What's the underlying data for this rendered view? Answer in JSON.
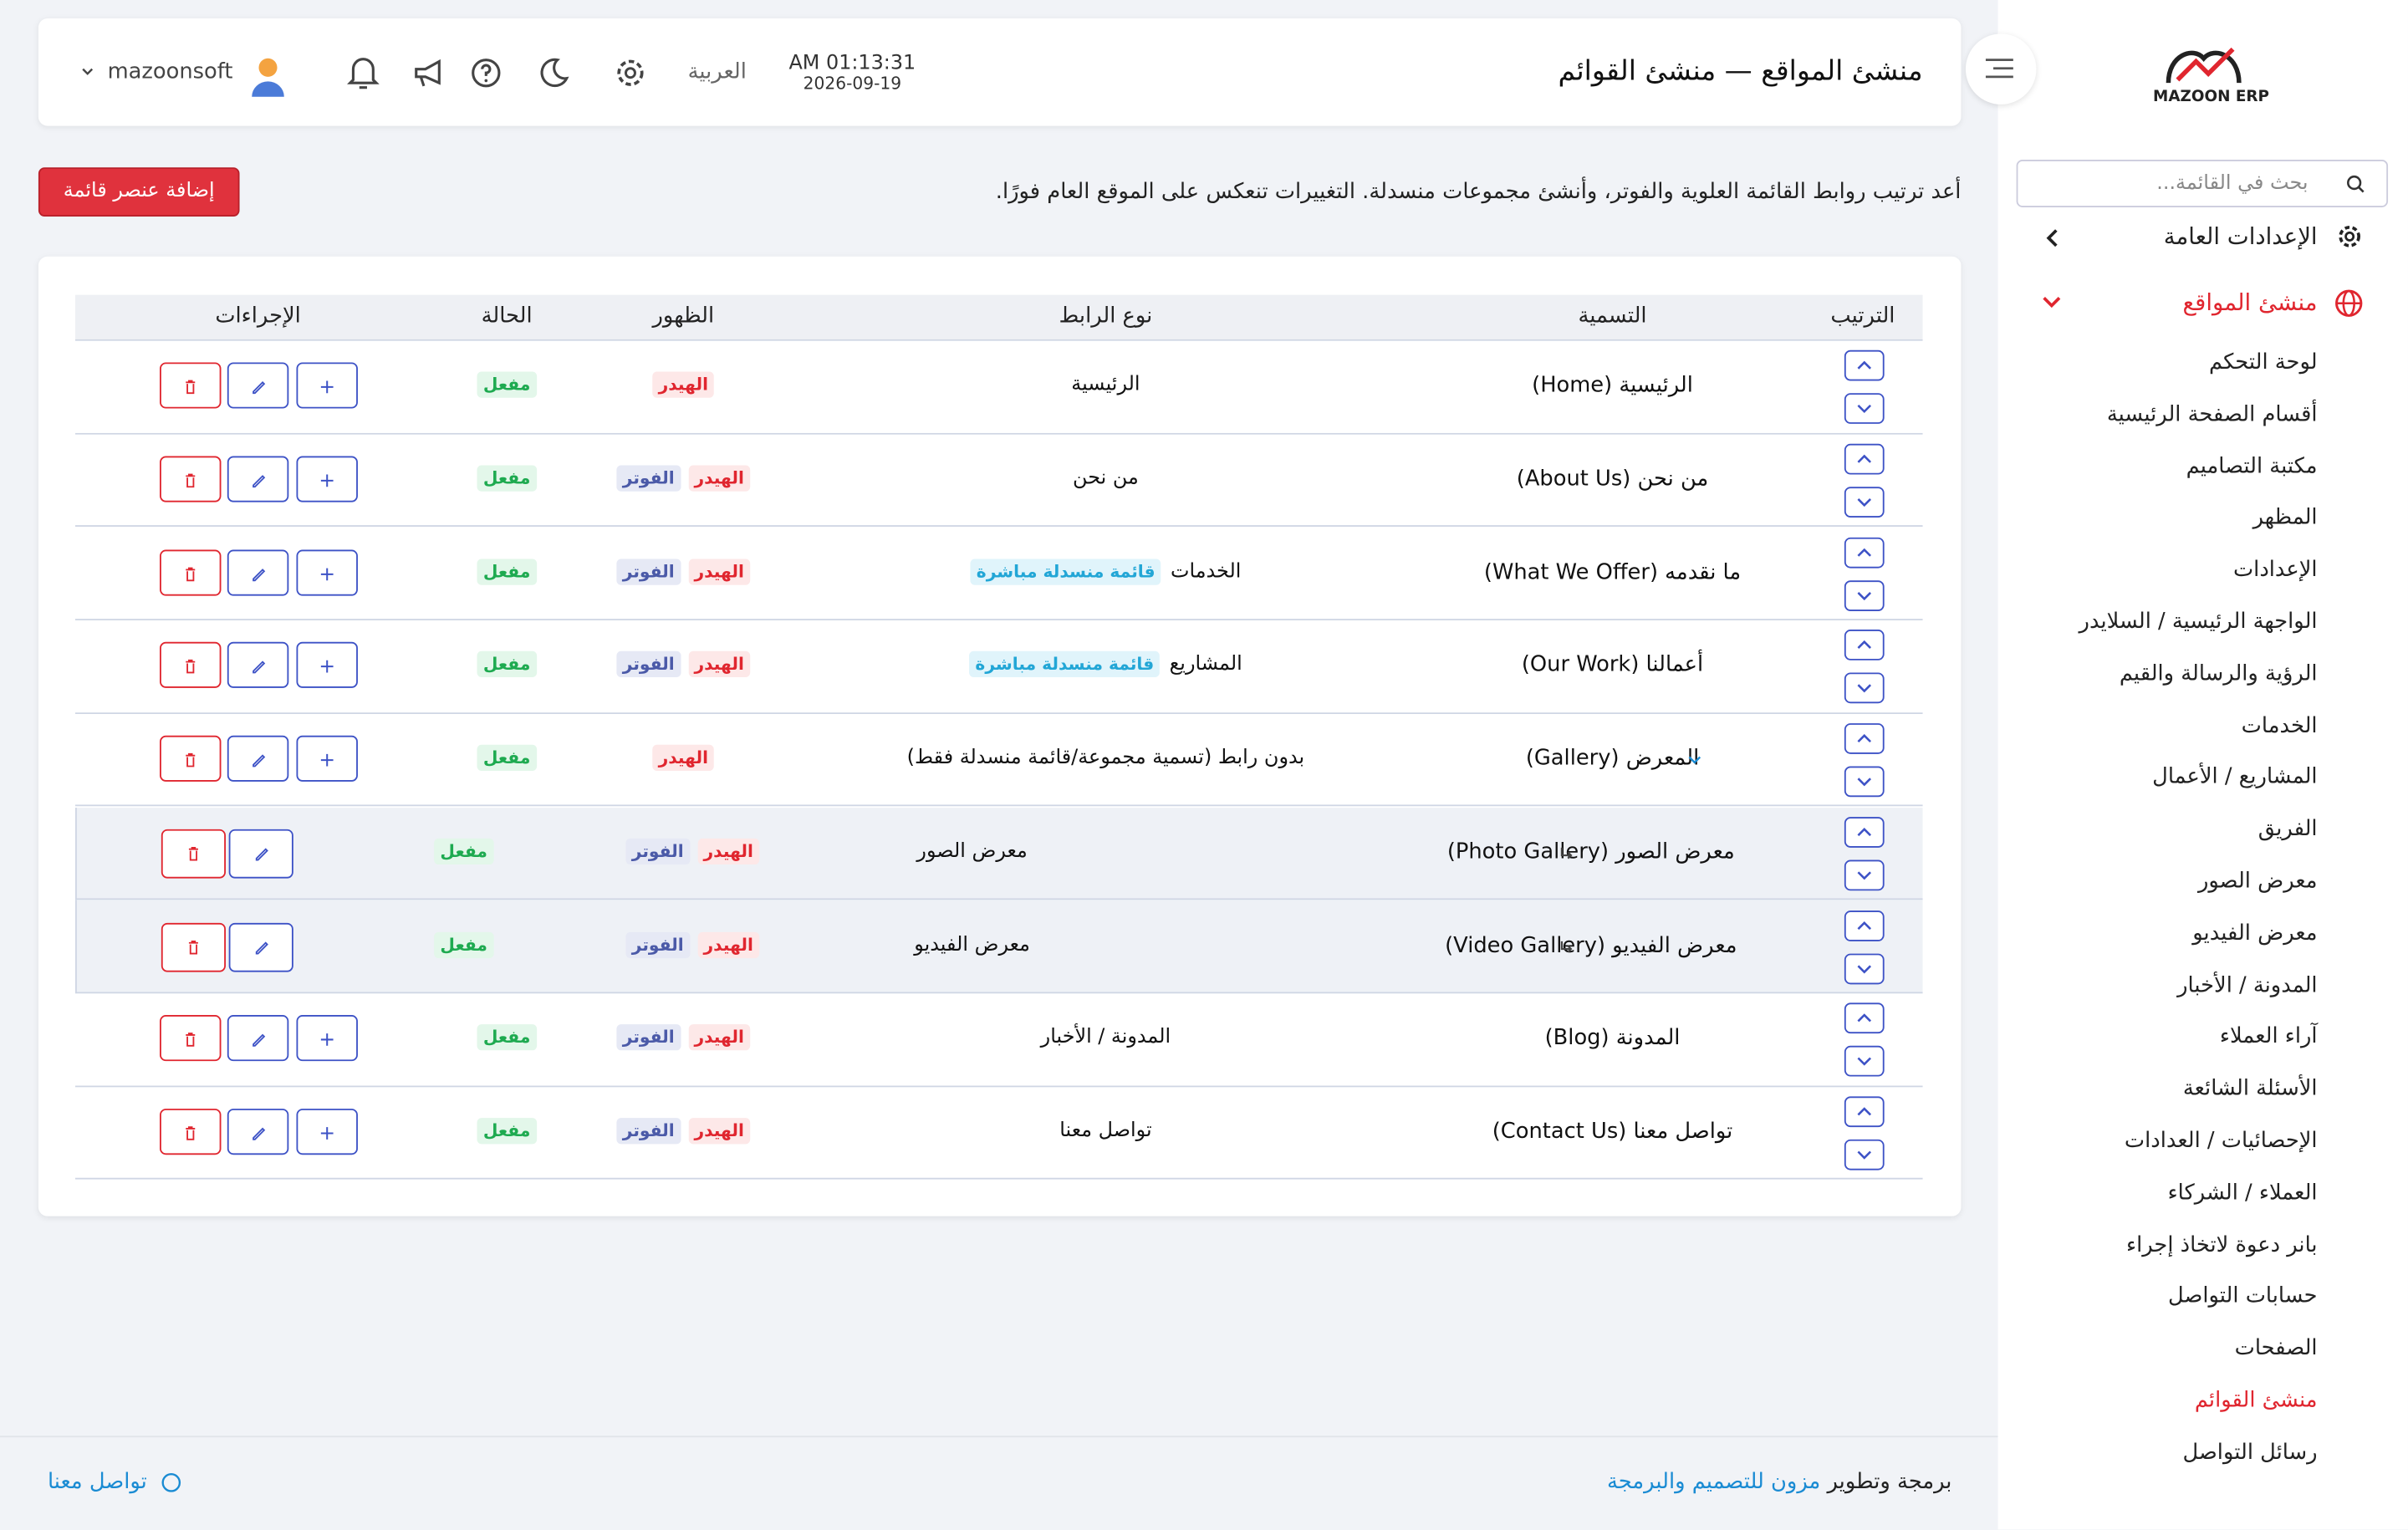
{
  "sidebar": {
    "logo": "MAZOON ERP",
    "search_placeholder": "بحث في القائمة...",
    "general_settings": "الإعدادات العامة",
    "site_builder": "منشئ المواقع",
    "items": [
      "لوحة التحكم",
      "أقسام الصفحة الرئيسية",
      "مكتبة التصاميم",
      "المظهر",
      "الإعدادات",
      "الواجهة الرئيسية / السلايدر",
      "الرؤية والرسالة والقيم",
      "الخدمات",
      "المشاريع / الأعمال",
      "الفريق",
      "معرض الصور",
      "معرض الفيديو",
      "المدونة / الأخبار",
      "آراء العملاء",
      "الأسئلة الشائعة",
      "الإحصائيات / العدادات",
      "العملاء / الشركاء",
      "بانر دعوة لاتخاذ إجراء",
      "حسابات التواصل",
      "الصفحات",
      "منشئ القوائم",
      "رسائل التواصل"
    ]
  },
  "header": {
    "title": "منشئ المواقع — منشئ القوائم",
    "time": "AM 01:13:31",
    "date": "2026-09-19",
    "language": "العربية",
    "username": "mazoonsoft"
  },
  "intro": {
    "description": "أعد ترتيب روابط القائمة العلوية والفوتر، وأنشئ مجموعات منسدلة. التغييرات تنعكس على الموقع العام فورًا.",
    "add_button": "إضافة عنصر قائمة"
  },
  "table": {
    "columns": [
      "الترتيب",
      "التسمية",
      "نوع الرابط",
      "الظهور",
      "الحالة",
      "الإجراءات"
    ],
    "rows": [
      {
        "label": "الرئيسية (Home)",
        "link_type": "الرئيسية",
        "visibility": [
          "الهيدر"
        ],
        "status": "مفعل"
      },
      {
        "label": "من نحن (About Us)",
        "link_type": "من نحن",
        "visibility": [
          "الهيدر",
          "الفوتر"
        ],
        "status": "مفعل"
      },
      {
        "label": "ما نقدمه (What We Offer)",
        "link_type": "الخدمات",
        "link_badge": "قائمة منسدلة مباشرة",
        "visibility": [
          "الهيدر",
          "الفوتر"
        ],
        "status": "مفعل"
      },
      {
        "label": "أعمالنا (Our Work)",
        "link_type": "المشاريع",
        "link_badge": "قائمة منسدلة مباشرة",
        "visibility": [
          "الهيدر",
          "الفوتر"
        ],
        "status": "مفعل"
      },
      {
        "label": "المعرض (Gallery)",
        "link_type": "بدون رابط (تسمية مجموعة/قائمة منسدلة فقط)",
        "visibility": [
          "الهيدر"
        ],
        "status": "مفعل"
      },
      {
        "label": "معرض الصور (Photo Gallery)",
        "link_type": "معرض الصور",
        "visibility": [
          "الهيدر",
          "الفوتر"
        ],
        "status": "مفعل",
        "child": true
      },
      {
        "label": "معرض الفيديو (Video Gallery)",
        "link_type": "معرض الفيديو",
        "visibility": [
          "الهيدر",
          "الفوتر"
        ],
        "status": "مفعل",
        "child": true
      },
      {
        "label": "المدونة (Blog)",
        "link_type": "المدونة / الأخبار",
        "visibility": [
          "الهيدر",
          "الفوتر"
        ],
        "status": "مفعل"
      },
      {
        "label": "تواصل معنا (Contact Us)",
        "link_type": "تواصل معنا",
        "visibility": [
          "الهيدر",
          "الفوتر"
        ],
        "status": "مفعل"
      }
    ]
  },
  "footer": {
    "credit": "برمجة وتطوير",
    "company": "مزون للتصميم والبرمجة",
    "contact": "تواصل معنا"
  }
}
